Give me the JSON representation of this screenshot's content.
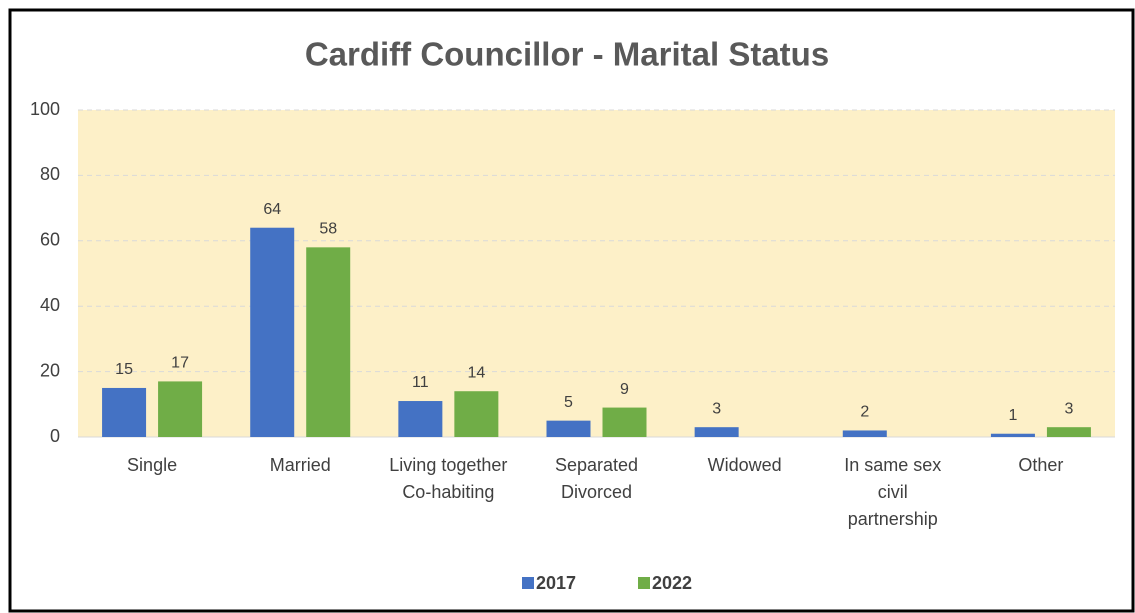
{
  "chart_data": {
    "type": "bar",
    "title": "Cardiff Councillor - Marital Status",
    "categories": [
      "Single",
      "Married",
      "Living together\nCo-habiting",
      "Separated\nDivorced",
      "Widowed",
      "In same  sex\ncivil\npartnership",
      "Other"
    ],
    "series": [
      {
        "name": "2017",
        "color": "#4472c4",
        "values": [
          15,
          64,
          11,
          5,
          3,
          2,
          1
        ]
      },
      {
        "name": "2022",
        "color": "#70ad47",
        "values": [
          17,
          58,
          14,
          9,
          null,
          null,
          3
        ]
      }
    ],
    "ylim": [
      0,
      100
    ],
    "yticks": [
      0,
      20,
      40,
      60,
      80,
      100
    ],
    "grid": true,
    "legend": "bottom"
  }
}
